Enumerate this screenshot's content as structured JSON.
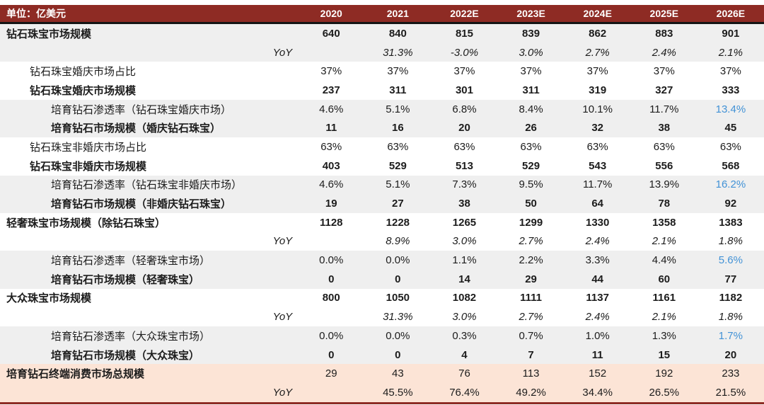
{
  "chart_data": {
    "type": "table",
    "unit_label": "单位：亿美元",
    "columns": [
      "2020",
      "2021",
      "2022E",
      "2023E",
      "2024E",
      "2025E",
      "2026E"
    ],
    "colors": {
      "header_bg": "#8E2B24",
      "header_text": "#FFFFFF",
      "band_gray": "#EFEFEF",
      "band_peach": "#FCE4D6",
      "highlight_blue": "#4292D6",
      "bottom_border": "#8E2B24"
    },
    "rows": [
      {
        "label": "钻石珠宝市场规模",
        "indent": 0,
        "label_bold": true,
        "label_italic": false,
        "label_align": "left",
        "band": "gray",
        "values": [
          "640",
          "840",
          "815",
          "839",
          "862",
          "883",
          "901"
        ],
        "values_bold": true,
        "values_italic": false,
        "last_value_blue": false
      },
      {
        "label": "YoY",
        "indent": 0,
        "label_bold": false,
        "label_italic": true,
        "label_align": "right",
        "band": "gray",
        "values": [
          "",
          "31.3%",
          "-3.0%",
          "3.0%",
          "2.7%",
          "2.4%",
          "2.1%"
        ],
        "values_bold": false,
        "values_italic": true,
        "last_value_blue": false
      },
      {
        "label": "钻石珠宝婚庆市场占比",
        "indent": 1,
        "label_bold": false,
        "label_italic": false,
        "label_align": "left",
        "band": "white",
        "values": [
          "37%",
          "37%",
          "37%",
          "37%",
          "37%",
          "37%",
          "37%"
        ],
        "values_bold": false,
        "values_italic": false,
        "last_value_blue": false
      },
      {
        "label": "钻石珠宝婚庆市场规模",
        "indent": 1,
        "label_bold": true,
        "label_italic": false,
        "label_align": "left",
        "band": "white",
        "values": [
          "237",
          "311",
          "301",
          "311",
          "319",
          "327",
          "333"
        ],
        "values_bold": true,
        "values_italic": false,
        "last_value_blue": false
      },
      {
        "label": "培育钻石渗透率（钻石珠宝婚庆市场）",
        "indent": 2,
        "label_bold": false,
        "label_italic": false,
        "label_align": "left",
        "band": "gray",
        "values": [
          "4.6%",
          "5.1%",
          "6.8%",
          "8.4%",
          "10.1%",
          "11.7%",
          "13.4%"
        ],
        "values_bold": false,
        "values_italic": false,
        "last_value_blue": true
      },
      {
        "label": "培育钻石市场规模（婚庆钻石珠宝）",
        "indent": 2,
        "label_bold": true,
        "label_italic": false,
        "label_align": "left",
        "band": "gray",
        "values": [
          "11",
          "16",
          "20",
          "26",
          "32",
          "38",
          "45"
        ],
        "values_bold": true,
        "values_italic": false,
        "last_value_blue": false
      },
      {
        "label": "钻石珠宝非婚庆市场占比",
        "indent": 1,
        "label_bold": false,
        "label_italic": false,
        "label_align": "left",
        "band": "white",
        "values": [
          "63%",
          "63%",
          "63%",
          "63%",
          "63%",
          "63%",
          "63%"
        ],
        "values_bold": false,
        "values_italic": false,
        "last_value_blue": false
      },
      {
        "label": "钻石珠宝非婚庆市场规模",
        "indent": 1,
        "label_bold": true,
        "label_italic": false,
        "label_align": "left",
        "band": "white",
        "values": [
          "403",
          "529",
          "513",
          "529",
          "543",
          "556",
          "568"
        ],
        "values_bold": true,
        "values_italic": false,
        "last_value_blue": false
      },
      {
        "label": "培育钻石渗透率（钻石珠宝非婚庆市场）",
        "indent": 2,
        "label_bold": false,
        "label_italic": false,
        "label_align": "left",
        "band": "gray",
        "values": [
          "4.6%",
          "5.1%",
          "7.3%",
          "9.5%",
          "11.7%",
          "13.9%",
          "16.2%"
        ],
        "values_bold": false,
        "values_italic": false,
        "last_value_blue": true
      },
      {
        "label": "培育钻石市场规模（非婚庆钻石珠宝）",
        "indent": 2,
        "label_bold": true,
        "label_italic": false,
        "label_align": "left",
        "band": "gray",
        "values": [
          "19",
          "27",
          "38",
          "50",
          "64",
          "78",
          "92"
        ],
        "values_bold": true,
        "values_italic": false,
        "last_value_blue": false
      },
      {
        "label": "轻奢珠宝市场规模（除钻石珠宝）",
        "indent": 0,
        "label_bold": true,
        "label_italic": false,
        "label_align": "left",
        "band": "white",
        "values": [
          "1128",
          "1228",
          "1265",
          "1299",
          "1330",
          "1358",
          "1383"
        ],
        "values_bold": true,
        "values_italic": false,
        "last_value_blue": false
      },
      {
        "label": "YoY",
        "indent": 0,
        "label_bold": false,
        "label_italic": true,
        "label_align": "right",
        "band": "white",
        "values": [
          "",
          "8.9%",
          "3.0%",
          "2.7%",
          "2.4%",
          "2.1%",
          "1.8%"
        ],
        "values_bold": false,
        "values_italic": true,
        "last_value_blue": false
      },
      {
        "label": "培育钻石渗透率（轻奢珠宝市场）",
        "indent": 2,
        "label_bold": false,
        "label_italic": false,
        "label_align": "left",
        "band": "gray",
        "values": [
          "0.0%",
          "0.0%",
          "1.1%",
          "2.2%",
          "3.3%",
          "4.4%",
          "5.6%"
        ],
        "values_bold": false,
        "values_italic": false,
        "last_value_blue": true
      },
      {
        "label": "培育钻石市场规模（轻奢珠宝）",
        "indent": 2,
        "label_bold": true,
        "label_italic": false,
        "label_align": "left",
        "band": "gray",
        "values": [
          "0",
          "0",
          "14",
          "29",
          "44",
          "60",
          "77"
        ],
        "values_bold": true,
        "values_italic": false,
        "last_value_blue": false
      },
      {
        "label": "大众珠宝市场规模",
        "indent": 0,
        "label_bold": true,
        "label_italic": false,
        "label_align": "left",
        "band": "white",
        "values": [
          "800",
          "1050",
          "1082",
          "1111",
          "1137",
          "1161",
          "1182"
        ],
        "values_bold": true,
        "values_italic": false,
        "last_value_blue": false
      },
      {
        "label": "YoY",
        "indent": 0,
        "label_bold": false,
        "label_italic": true,
        "label_align": "right",
        "band": "white",
        "values": [
          "",
          "31.3%",
          "3.0%",
          "2.7%",
          "2.4%",
          "2.1%",
          "1.8%"
        ],
        "values_bold": false,
        "values_italic": true,
        "last_value_blue": false
      },
      {
        "label": "培育钻石渗透率（大众珠宝市场）",
        "indent": 2,
        "label_bold": false,
        "label_italic": false,
        "label_align": "left",
        "band": "gray",
        "values": [
          "0.0%",
          "0.0%",
          "0.3%",
          "0.7%",
          "1.0%",
          "1.3%",
          "1.7%"
        ],
        "values_bold": false,
        "values_italic": false,
        "last_value_blue": true
      },
      {
        "label": "培育钻石市场规模（大众珠宝）",
        "indent": 2,
        "label_bold": true,
        "label_italic": false,
        "label_align": "left",
        "band": "gray",
        "values": [
          "0",
          "0",
          "4",
          "7",
          "11",
          "15",
          "20"
        ],
        "values_bold": true,
        "values_italic": false,
        "last_value_blue": false
      },
      {
        "label": "培育钻石终端消费市场总规模",
        "indent": 0,
        "label_bold": true,
        "label_italic": false,
        "label_align": "left",
        "band": "peach",
        "values": [
          "29",
          "43",
          "76",
          "113",
          "152",
          "192",
          "233"
        ],
        "values_bold": false,
        "values_italic": false,
        "last_value_blue": false
      },
      {
        "label": "YoY",
        "indent": 0,
        "label_bold": false,
        "label_italic": true,
        "label_align": "right",
        "band": "peach",
        "values": [
          "",
          "45.5%",
          "76.4%",
          "49.2%",
          "34.4%",
          "26.5%",
          "21.5%"
        ],
        "values_bold": false,
        "values_italic": false,
        "last_value_blue": false
      }
    ]
  }
}
